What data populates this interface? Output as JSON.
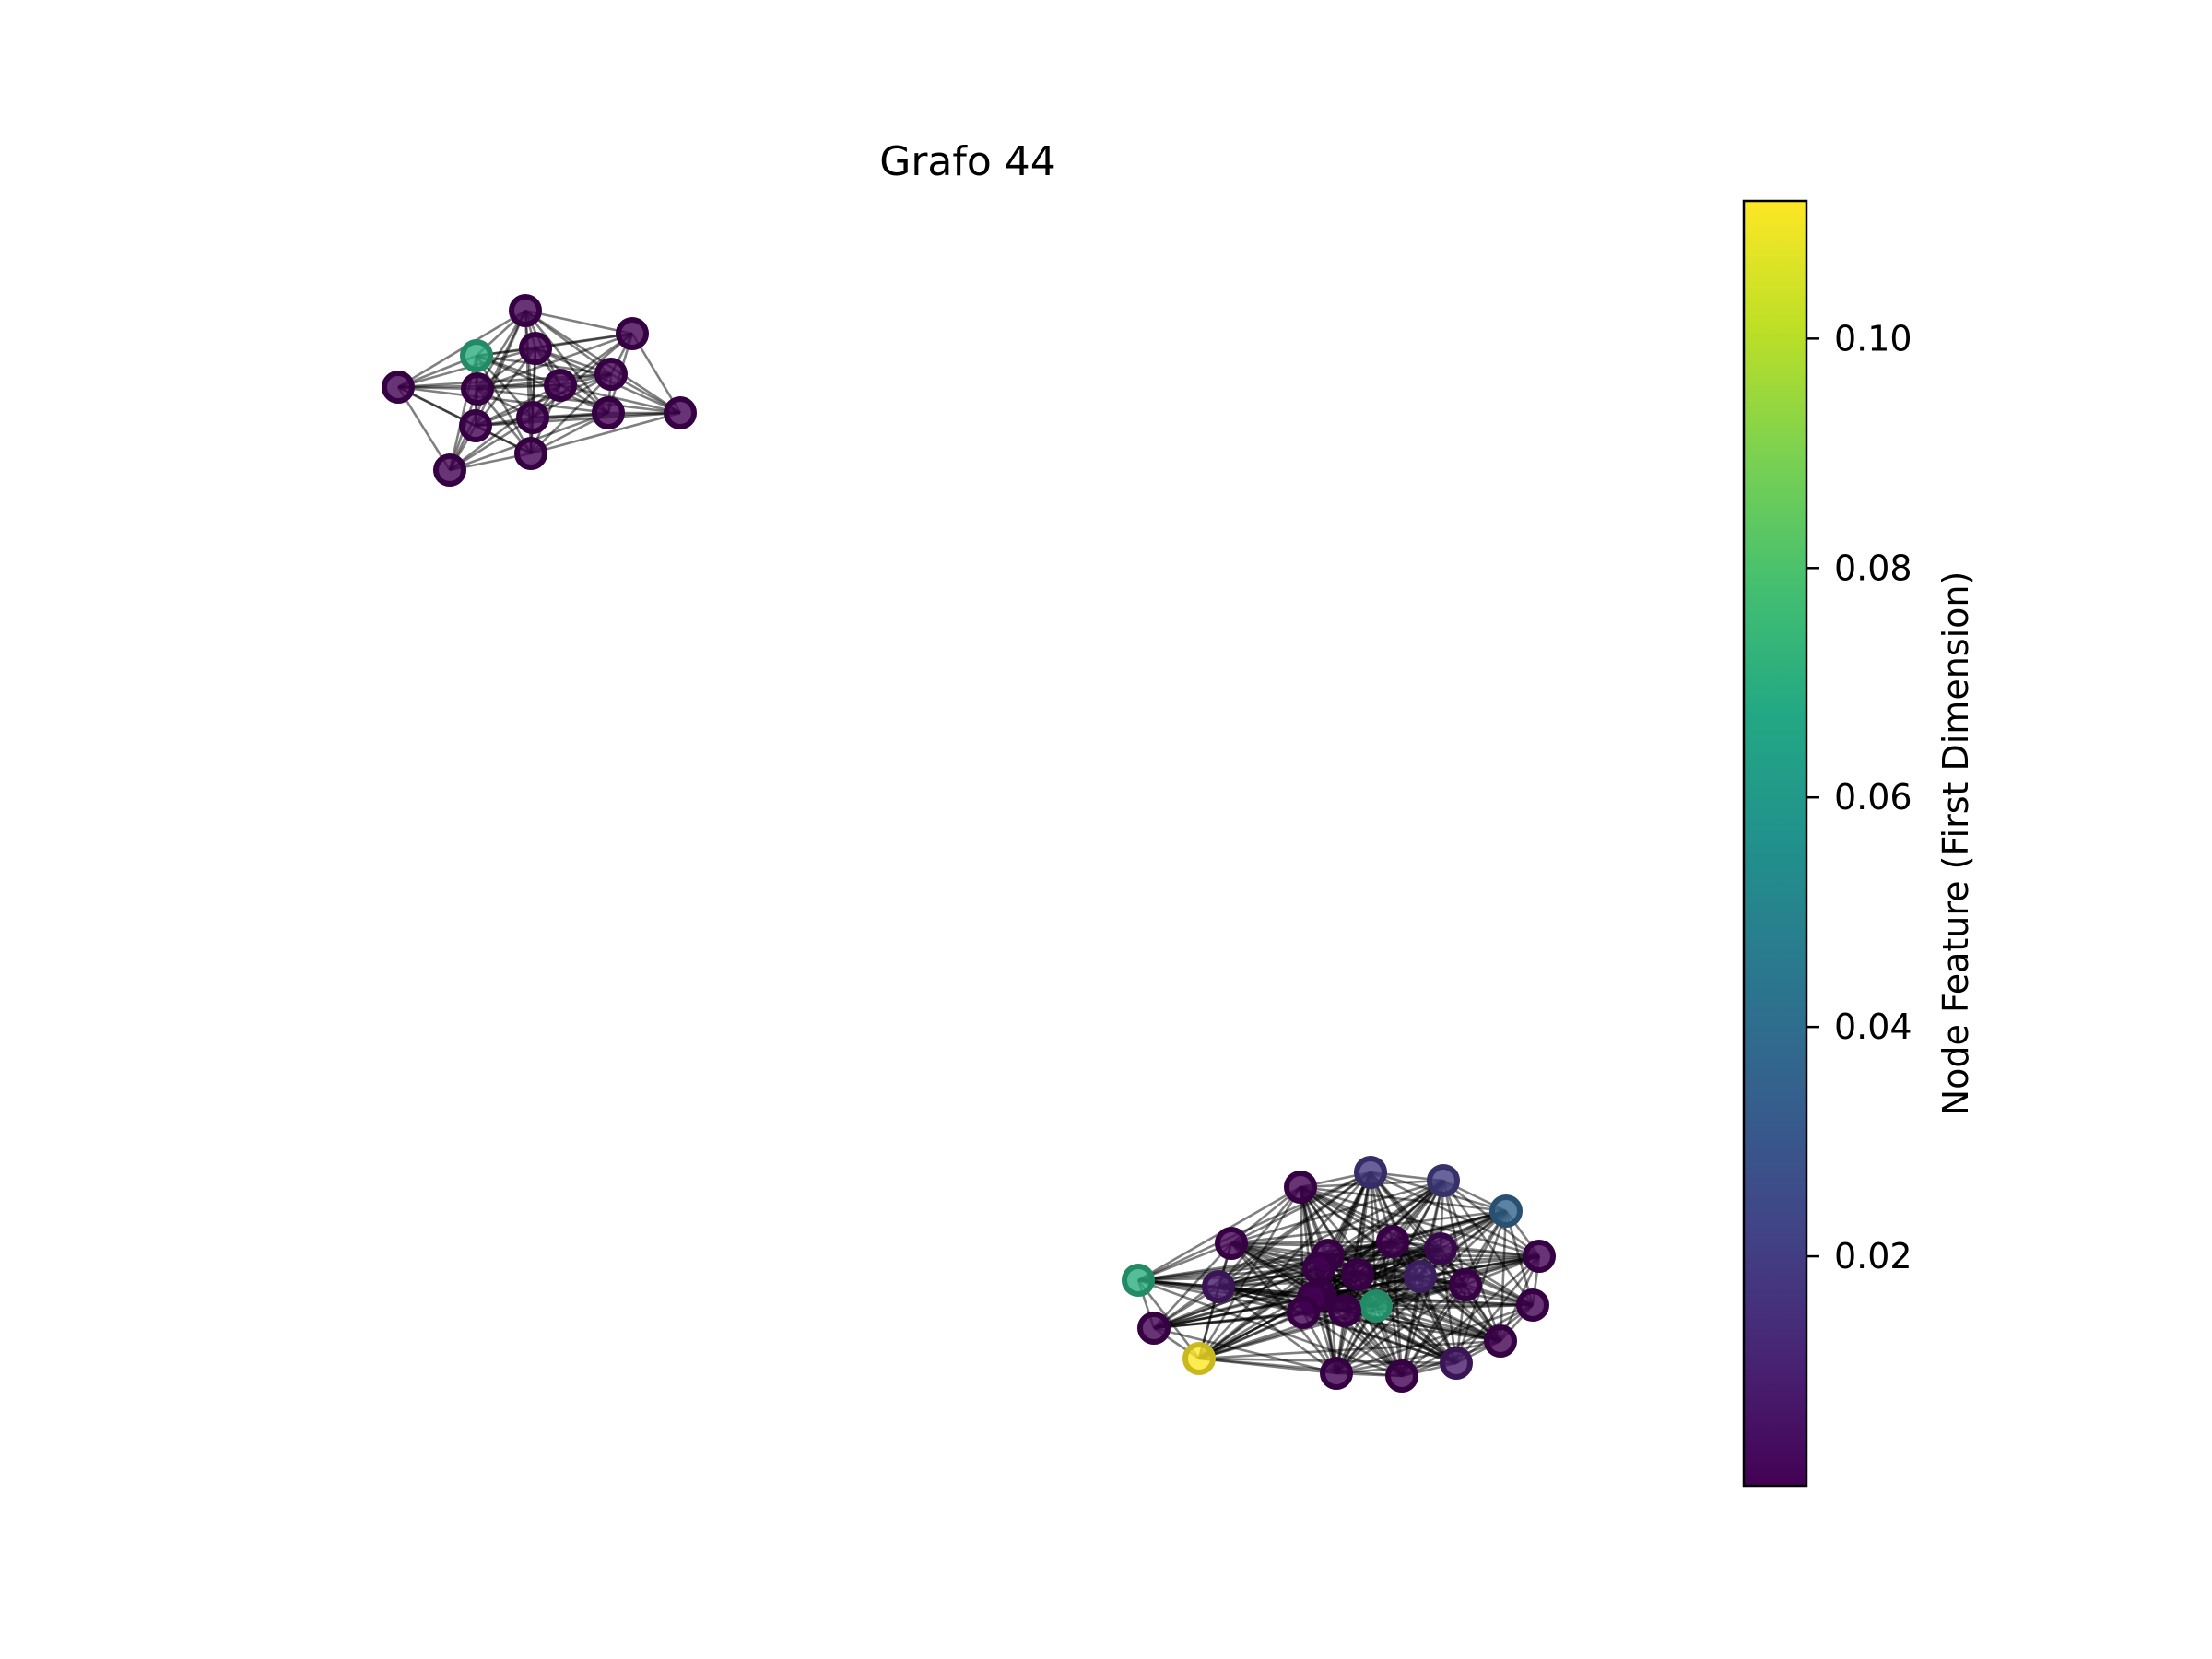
{
  "chart_data": {
    "type": "network",
    "title": "Grafo 44",
    "colorbar": {
      "label": "Node Feature (First Dimension)",
      "min": 0.0,
      "max": 0.112,
      "ticks": [
        {
          "value": 0.02,
          "label": "0.02"
        },
        {
          "value": 0.04,
          "label": "0.04"
        },
        {
          "value": 0.06,
          "label": "0.06"
        },
        {
          "value": 0.08,
          "label": "0.08"
        },
        {
          "value": 0.1,
          "label": "0.10"
        }
      ],
      "colormap": "viridis"
    },
    "components": [
      {
        "nodes": [
          {
            "id": "a0",
            "value": 0.0
          },
          {
            "id": "a1",
            "value": 0.07
          },
          {
            "id": "a2",
            "value": 0.0
          },
          {
            "id": "a3",
            "value": 0.0
          },
          {
            "id": "a4",
            "value": 0.0
          },
          {
            "id": "a5",
            "value": 0.0
          },
          {
            "id": "a6",
            "value": 0.0
          },
          {
            "id": "a7",
            "value": 0.0
          },
          {
            "id": "a8",
            "value": 0.0
          },
          {
            "id": "a9",
            "value": 0.0
          },
          {
            "id": "a10",
            "value": 0.0
          },
          {
            "id": "a11",
            "value": 0.0
          },
          {
            "id": "a12",
            "value": 0.0
          },
          {
            "id": "a13",
            "value": 0.0
          }
        ]
      },
      {
        "nodes": [
          {
            "id": "b0",
            "value": 0.0
          },
          {
            "id": "b1",
            "value": 0.018
          },
          {
            "id": "b2",
            "value": 0.02
          },
          {
            "id": "b3",
            "value": 0.036
          },
          {
            "id": "b4",
            "value": 0.0
          },
          {
            "id": "b5",
            "value": 0.0
          },
          {
            "id": "b6",
            "value": 0.0
          },
          {
            "id": "b7",
            "value": 0.0
          },
          {
            "id": "b8",
            "value": 0.003
          },
          {
            "id": "b9",
            "value": 0.07
          },
          {
            "id": "b10",
            "value": 0.008
          },
          {
            "id": "b11",
            "value": 0.0
          },
          {
            "id": "b12",
            "value": 0.0
          },
          {
            "id": "b13",
            "value": 0.0
          },
          {
            "id": "b14",
            "value": 0.012
          },
          {
            "id": "b15",
            "value": 0.0
          },
          {
            "id": "b16",
            "value": 0.07
          },
          {
            "id": "b17",
            "value": 0.0
          },
          {
            "id": "b18",
            "value": 0.0
          },
          {
            "id": "b19",
            "value": 0.112
          },
          {
            "id": "b20",
            "value": 0.0
          },
          {
            "id": "b21",
            "value": 0.0
          },
          {
            "id": "b22",
            "value": 0.008
          },
          {
            "id": "b23",
            "value": 0.0
          },
          {
            "id": "b24",
            "value": 0.0
          },
          {
            "id": "b25",
            "value": 0.0
          },
          {
            "id": "b26",
            "value": 0.0
          }
        ]
      }
    ]
  }
}
